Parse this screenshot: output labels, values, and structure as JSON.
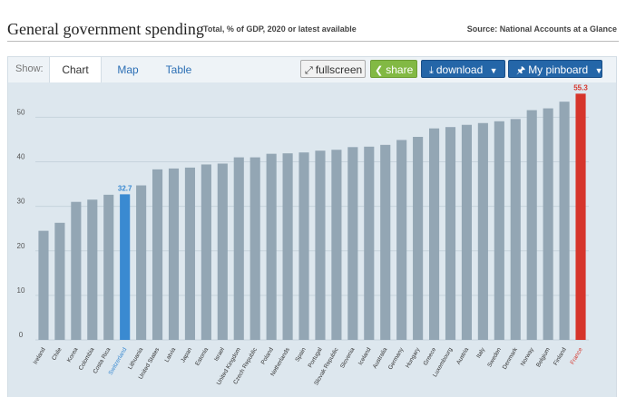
{
  "header": {
    "title": "General government spending",
    "subtitle": "Total, % of GDP, 2020 or latest available",
    "source": "Source: National Accounts at a Glance"
  },
  "toolbar": {
    "show_label": "Show:",
    "tabs": [
      {
        "label": "Chart"
      },
      {
        "label": "Map"
      },
      {
        "label": "Table"
      }
    ],
    "fullscreen_label": "fullscreen",
    "share_label": "share",
    "download_label": "download",
    "pinboard_label": "My pinboard",
    "icons": [
      "fullscreen-icon",
      "share-icon",
      "download-icon",
      "pin-icon",
      "caret-down-icon"
    ]
  },
  "chart_data": {
    "type": "bar",
    "categories": [
      "Ireland",
      "Chile",
      "Korea",
      "Colombia",
      "Costa Rica",
      "Switzerland",
      "Lithuania",
      "United States",
      "Latvia",
      "Japan",
      "Estonia",
      "Israel",
      "United Kingdom",
      "Czech Republic",
      "Poland",
      "Netherlands",
      "Spain",
      "Portugal",
      "Slovak Republic",
      "Slovenia",
      "Iceland",
      "Australia",
      "Germany",
      "Hungary",
      "Greece",
      "Luxembourg",
      "Austria",
      "Italy",
      "Sweden",
      "Denmark",
      "Norway",
      "Belgium",
      "Finland",
      "France"
    ],
    "values": [
      24.5,
      26.3,
      31.0,
      31.5,
      32.6,
      32.7,
      34.7,
      38.3,
      38.5,
      38.7,
      39.4,
      39.6,
      41.0,
      41.0,
      41.8,
      41.9,
      42.1,
      42.5,
      42.7,
      43.3,
      43.4,
      43.8,
      44.9,
      45.6,
      47.5,
      47.8,
      48.3,
      48.7,
      49.1,
      49.6,
      51.6,
      52.0,
      53.5,
      55.3
    ],
    "highlighted": [
      {
        "category": "Switzerland",
        "value": 32.7,
        "label": "32.7",
        "color": "#3a8ad1"
      },
      {
        "category": "France",
        "value": 55.3,
        "label": "55.3",
        "color": "#d6352b"
      }
    ],
    "default_color": "#93a6b4",
    "y_ticks": [
      0,
      10,
      20,
      30,
      40,
      50
    ],
    "ylim": [
      0,
      57
    ],
    "grid": true,
    "xlabel": "",
    "ylabel": ""
  }
}
